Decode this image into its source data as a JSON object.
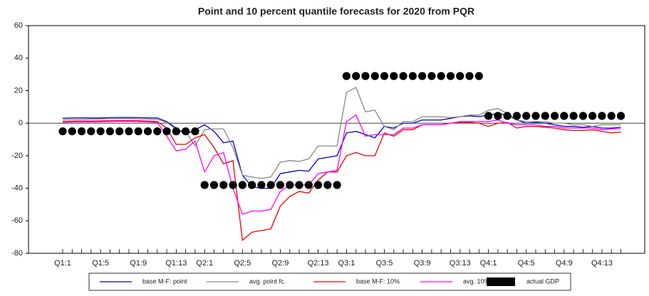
{
  "chart_data": {
    "type": "line",
    "title": "Point and 10 percent quantile forecasts for 2020 from PQR",
    "categories": [
      "Q1:1",
      null,
      null,
      null,
      "Q1:5",
      null,
      null,
      null,
      "Q1:9",
      null,
      null,
      null,
      "Q1:13",
      null,
      null,
      "Q2:1",
      null,
      null,
      null,
      "Q2:5",
      null,
      null,
      null,
      "Q2:9",
      null,
      null,
      null,
      "Q2:13",
      null,
      null,
      "Q3:1",
      null,
      null,
      null,
      "Q3:5",
      null,
      null,
      null,
      "Q3:9",
      null,
      null,
      null,
      "Q3:13",
      null,
      null,
      "Q4:1",
      null,
      null,
      null,
      "Q4:5",
      null,
      null,
      null,
      "Q4:9",
      null,
      null,
      null,
      "Q4:13",
      null,
      null
    ],
    "ylim": [
      -80,
      60
    ],
    "yticks": [
      -80,
      -60,
      -40,
      -20,
      0,
      20,
      40,
      60
    ],
    "series": [
      {
        "name": "base M-F: point",
        "color": "#0000cc",
        "mark": "line",
        "values": [
          3,
          3.2,
          3.3,
          3.2,
          3.2,
          3.4,
          3.5,
          3.5,
          3.4,
          3.3,
          3.2,
          1,
          -3,
          -7,
          -4,
          -1,
          -5,
          -12,
          -11,
          -32,
          -39,
          -40,
          -40,
          -31,
          -30,
          -29,
          -29.5,
          -22,
          -21,
          -20,
          -6,
          -5,
          -7,
          -9,
          -2,
          -3,
          0,
          0,
          2,
          2,
          2,
          3,
          4,
          4.5,
          4,
          5,
          6,
          5,
          2,
          0,
          0.5,
          0,
          -1,
          -2,
          -2,
          -2.5,
          -2,
          -3,
          -3,
          -2.5
        ]
      },
      {
        "name": "avg. point fc.",
        "color": "#888888",
        "mark": "line",
        "values": [
          2,
          2.2,
          2.3,
          2.5,
          2.5,
          2.7,
          2.8,
          2.8,
          2.6,
          2.5,
          2.3,
          0.5,
          -4,
          -5,
          -14,
          -4,
          -3.5,
          -3.5,
          -15,
          -32,
          -33,
          -34,
          -33,
          -24,
          -23,
          -23.5,
          -22,
          -14,
          -14,
          -14,
          19,
          22,
          7,
          8,
          -2,
          -4,
          1,
          1,
          4,
          4,
          4,
          3.5,
          4,
          5,
          5,
          8,
          9,
          6,
          2,
          1,
          1,
          1,
          0,
          0,
          -1,
          -1,
          -2,
          -1,
          -1,
          -1
        ]
      },
      {
        "name": "base M-F: 10%",
        "color": "#ee0000",
        "mark": "line",
        "values": [
          1,
          1.2,
          1.3,
          1.3,
          1.4,
          1.5,
          1.6,
          1.6,
          1.5,
          1.3,
          1,
          -3,
          -13,
          -13,
          -9,
          -7,
          -15,
          -25,
          -23,
          -72,
          -67,
          -66,
          -65,
          -51,
          -45,
          -42,
          -43,
          -35,
          -30,
          -30,
          -20,
          -18,
          -20,
          -20,
          -6,
          -8,
          -4,
          -4,
          -1,
          -1,
          -1,
          0,
          0.5,
          0.5,
          0,
          -2,
          0,
          0.5,
          -3,
          -2,
          -2,
          -2.5,
          -3,
          -4,
          -4.5,
          -4.5,
          -4,
          -5,
          -6,
          -5.5
        ]
      },
      {
        "name": "avg. 10% fc.",
        "color": "#ff00ff",
        "mark": "line",
        "values": [
          0.5,
          0.7,
          0.8,
          0.8,
          0.9,
          1,
          1.1,
          1.1,
          1,
          0.8,
          0.5,
          -8,
          -17,
          -16,
          -11,
          -30,
          -20,
          -18,
          -40,
          -56,
          -54,
          -54,
          -53,
          -42,
          -38,
          -38,
          -38,
          -31,
          -30,
          -29,
          1,
          5,
          -8,
          -7,
          -7,
          -7,
          -3,
          -3,
          -1,
          -1,
          -1,
          0,
          1,
          1,
          1,
          1,
          2,
          0,
          -1,
          -1,
          -1,
          -2,
          -2,
          -3,
          -3,
          -3,
          -3,
          -4,
          -3.5,
          -3.5
        ]
      },
      {
        "name": "actual GDP",
        "color": "#000000",
        "mark": "dot",
        "values": [
          -5,
          -5,
          -5,
          -5,
          -5,
          -5,
          -5,
          -5,
          -5,
          -5,
          -5,
          -5,
          -5,
          -5,
          -5,
          -38,
          -38,
          -38,
          -38,
          -38,
          -38,
          -38,
          -38,
          -38,
          -38,
          -38,
          -38,
          -38,
          -38,
          -38,
          29,
          29,
          29,
          29,
          29,
          29,
          29,
          29,
          29,
          29,
          29,
          29,
          29,
          29,
          29,
          4.5,
          4.5,
          4.5,
          4.5,
          4.5,
          4.5,
          4.5,
          4.5,
          4.5,
          4.5,
          4.5,
          4.5,
          4.5,
          4.5,
          4.5
        ]
      }
    ]
  }
}
